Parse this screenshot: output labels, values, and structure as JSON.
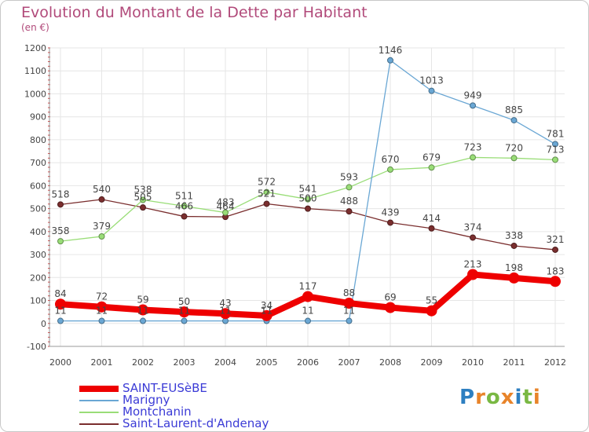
{
  "chart_data": {
    "type": "line",
    "title": "Evolution du Montant de la Dette par Habitant",
    "ylabel": "(en €)",
    "xlabel": "",
    "categories": [
      "2000",
      "2001",
      "2002",
      "2003",
      "2004",
      "2005",
      "2006",
      "2007",
      "2008",
      "2009",
      "2010",
      "2011",
      "2012"
    ],
    "y_ticks": [
      -100,
      0,
      100,
      200,
      300,
      400,
      500,
      600,
      700,
      800,
      900,
      1000,
      1100,
      1200
    ],
    "ylim": [
      -100,
      1200
    ],
    "grid": true,
    "legend_position": "bottom-left",
    "series": [
      {
        "name": "Saint-Laurent-d'Andenay",
        "color": "#7a2e2e",
        "width": 1.3,
        "marker_radius": 3.5,
        "values": [
          518,
          540,
          505,
          466,
          464,
          521,
          500,
          488,
          439,
          414,
          374,
          338,
          321
        ]
      },
      {
        "name": "Montchanin",
        "color": "#99dd77",
        "width": 1.3,
        "marker_radius": 3.5,
        "values": [
          358,
          379,
          538,
          511,
          483,
          572,
          541,
          593,
          670,
          679,
          723,
          720,
          713
        ]
      },
      {
        "name": "Marigny",
        "color": "#6aa7d4",
        "width": 1.3,
        "marker_radius": 3.5,
        "values": [
          11,
          11,
          11,
          11,
          11,
          11,
          11,
          11,
          1146,
          1013,
          949,
          885,
          781
        ]
      },
      {
        "name": "SAINT-EUSèBE",
        "color": "#ee0000",
        "width": 8,
        "marker_radius": 7,
        "values": [
          84,
          72,
          59,
          50,
          43,
          34,
          117,
          88,
          69,
          55,
          213,
          198,
          183
        ]
      }
    ],
    "legend_order": [
      "SAINT-EUSèBE",
      "Marigny",
      "Montchanin",
      "Saint-Laurent-d'Andenay"
    ]
  },
  "logo": {
    "text": "Proxiti",
    "letters": [
      "P",
      "r",
      "o",
      "x",
      "i",
      "t",
      "i"
    ],
    "colors": [
      "#2d7fc1",
      "#e8842a",
      "#79b843",
      "#e8842a",
      "#2d7fc1",
      "#79b843",
      "#e8842a"
    ]
  }
}
